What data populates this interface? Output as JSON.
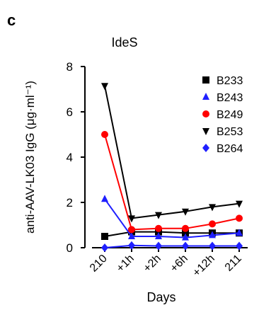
{
  "panel_label": "c",
  "chart_data": {
    "type": "line",
    "title": "IdeS",
    "xlabel": "Days",
    "ylabel": "anti-AAV-LK03 IgG (μg·ml⁻¹)",
    "categories": [
      "210",
      "+1h",
      "+2h",
      "+6h",
      "+12h",
      "211"
    ],
    "ylim": [
      0,
      8
    ],
    "yticks": [
      0,
      2,
      4,
      6,
      8
    ],
    "grid": false,
    "legend_position": "top-right",
    "series": [
      {
        "name": "B233",
        "color": "#000000",
        "marker": "square",
        "values": [
          0.5,
          0.7,
          0.7,
          0.65,
          0.65,
          0.65
        ]
      },
      {
        "name": "B243",
        "color": "#1f1fff",
        "marker": "triangle-up",
        "values": [
          2.15,
          0.5,
          0.5,
          0.45,
          0.55,
          0.65
        ]
      },
      {
        "name": "B249",
        "color": "#ff0000",
        "marker": "circle",
        "values": [
          5.0,
          0.8,
          0.85,
          0.85,
          1.05,
          1.3
        ]
      },
      {
        "name": "B253",
        "color": "#000000",
        "marker": "triangle-down",
        "values": [
          7.15,
          1.3,
          1.45,
          1.6,
          1.8,
          1.95
        ]
      },
      {
        "name": "B264",
        "color": "#1f1fff",
        "marker": "diamond",
        "values": [
          0.0,
          0.1,
          0.08,
          0.08,
          0.08,
          0.08
        ]
      }
    ]
  }
}
